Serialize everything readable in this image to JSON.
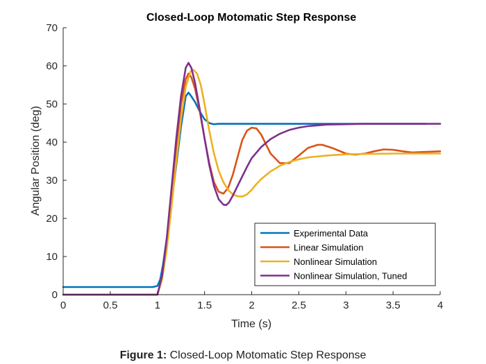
{
  "chart_data": {
    "type": "line",
    "title": "Closed-Loop Motomatic Step Response",
    "xlabel": "Time (s)",
    "ylabel": "Angular Position (deg)",
    "xlim": [
      0,
      4
    ],
    "ylim": [
      0,
      70
    ],
    "xticks": [
      0,
      0.5,
      1,
      1.5,
      2,
      2.5,
      3,
      3.5,
      4
    ],
    "xtick_labels": [
      "0",
      "0.5",
      "1",
      "1.5",
      "2",
      "2.5",
      "3",
      "3.5",
      "4"
    ],
    "yticks": [
      0,
      10,
      20,
      30,
      40,
      50,
      60,
      70
    ],
    "ytick_labels": [
      "0",
      "10",
      "20",
      "30",
      "40",
      "50",
      "60",
      "70"
    ],
    "grid": false,
    "legend_position": "bottom-right",
    "series": [
      {
        "name": "Experimental Data",
        "color": "#0072BD",
        "x": [
          0,
          0.5,
          0.95,
          1.0,
          1.03,
          1.06,
          1.1,
          1.15,
          1.2,
          1.25,
          1.3,
          1.33,
          1.36,
          1.4,
          1.45,
          1.5,
          1.55,
          1.6,
          1.65,
          1.7,
          1.8,
          2.0,
          2.5,
          3.0,
          3.5,
          3.85
        ],
        "y": [
          2,
          2,
          2,
          2.3,
          4,
          8,
          15,
          24,
          34,
          44,
          52,
          53,
          52,
          50.5,
          48,
          46,
          45,
          44.7,
          44.8,
          44.8,
          44.8,
          44.8,
          44.8,
          44.8,
          44.8,
          44.8
        ]
      },
      {
        "name": "Linear Simulation",
        "color": "#D95319",
        "x": [
          0,
          0.99,
          1.0,
          1.05,
          1.1,
          1.15,
          1.2,
          1.25,
          1.3,
          1.33,
          1.36,
          1.4,
          1.45,
          1.5,
          1.55,
          1.6,
          1.65,
          1.7,
          1.75,
          1.8,
          1.85,
          1.9,
          1.95,
          2.0,
          2.05,
          2.1,
          2.15,
          2.2,
          2.3,
          2.4,
          2.5,
          2.6,
          2.7,
          2.75,
          2.85,
          3.0,
          3.1,
          3.2,
          3.3,
          3.4,
          3.5,
          3.6,
          3.7,
          3.8,
          3.9,
          4.0
        ],
        "y": [
          0,
          0,
          0,
          5,
          14,
          26,
          39,
          50,
          56.5,
          58,
          57,
          54,
          48,
          41,
          34.5,
          29.5,
          27,
          26.5,
          28,
          31.5,
          36,
          40.5,
          43,
          43.8,
          43.6,
          42,
          39.5,
          37,
          34.5,
          34.5,
          36.5,
          38.5,
          39.3,
          39.3,
          38.5,
          37,
          36.7,
          37,
          37.6,
          38.1,
          38,
          37.6,
          37.3,
          37.4,
          37.5,
          37.6
        ]
      },
      {
        "name": "Nonlinear Simulation",
        "color": "#EDB120",
        "x": [
          0,
          0.99,
          1.0,
          1.05,
          1.1,
          1.15,
          1.2,
          1.25,
          1.3,
          1.35,
          1.38,
          1.42,
          1.46,
          1.5,
          1.55,
          1.6,
          1.65,
          1.7,
          1.75,
          1.8,
          1.85,
          1.9,
          1.95,
          2.0,
          2.05,
          2.1,
          2.2,
          2.3,
          2.4,
          2.5,
          2.6,
          2.8,
          3.0,
          3.2,
          3.5,
          3.8,
          4.0
        ],
        "y": [
          0,
          0,
          0,
          4,
          12,
          23,
          35,
          46,
          54.5,
          58.5,
          59,
          58,
          55,
          50,
          43,
          37,
          32.5,
          29.5,
          27.5,
          26.3,
          25.8,
          25.7,
          26.3,
          27.5,
          29,
          30.3,
          32.3,
          33.8,
          34.8,
          35.5,
          36,
          36.5,
          36.8,
          36.9,
          37,
          37,
          37
        ]
      },
      {
        "name": "Nonlinear Simulation, Tuned",
        "color": "#7E2F8E",
        "x": [
          0,
          0.99,
          1.0,
          1.05,
          1.1,
          1.15,
          1.2,
          1.25,
          1.3,
          1.33,
          1.36,
          1.4,
          1.45,
          1.5,
          1.55,
          1.6,
          1.65,
          1.7,
          1.73,
          1.76,
          1.8,
          1.85,
          1.9,
          1.95,
          2.0,
          2.1,
          2.2,
          2.3,
          2.4,
          2.5,
          2.6,
          2.7,
          2.8,
          3.0,
          3.2,
          3.5,
          3.8,
          4.0
        ],
        "y": [
          0,
          0,
          0,
          5,
          15,
          28,
          41,
          52,
          59.5,
          60.8,
          59.5,
          55.5,
          48.5,
          41,
          34,
          28.5,
          25,
          23.6,
          23.5,
          24.2,
          26,
          28.5,
          31,
          33.5,
          35.8,
          38.7,
          40.8,
          42.2,
          43.2,
          43.8,
          44.2,
          44.4,
          44.6,
          44.7,
          44.8,
          44.8,
          44.8,
          44.8
        ]
      }
    ]
  },
  "caption": {
    "label": "Figure 1:",
    "text": "Closed-Loop Motomatic Step Response"
  }
}
